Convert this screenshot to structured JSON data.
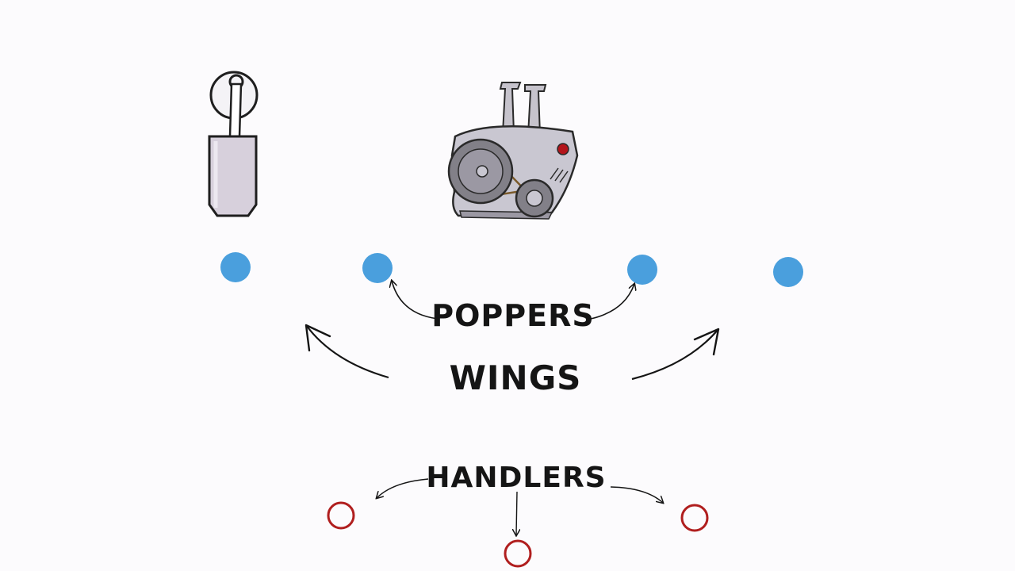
{
  "labels": {
    "poppers": "POPPERS",
    "wings": "WINGS",
    "handlers": "HANDLERS"
  },
  "icons": [
    "stack-icon",
    "engine-icon"
  ],
  "colors": {
    "offense_player": "#4a9fdd",
    "defense_player": "#b01e1e",
    "ink": "#151515",
    "background": "#fcfbfd"
  },
  "players": {
    "blue_dots": 4,
    "red_rings": 3
  }
}
